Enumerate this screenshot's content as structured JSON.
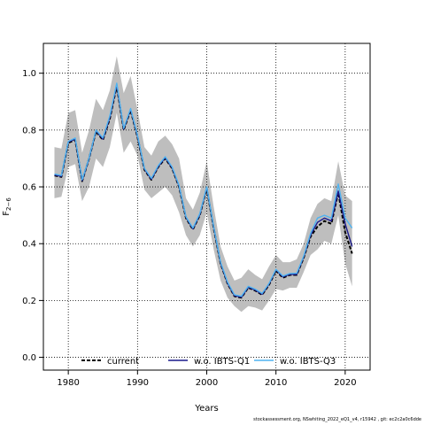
{
  "chart_data": {
    "type": "line",
    "xlabel": "Years",
    "ylabel": "F",
    "ylabel_subscript": "2−6",
    "xlim": [
      1976.4,
      2023.6
    ],
    "ylim": [
      -0.045,
      1.105
    ],
    "xticks": [
      1980,
      1990,
      2000,
      2010,
      2020
    ],
    "yticks": [
      0.0,
      0.2,
      0.4,
      0.6,
      0.8,
      1.0
    ],
    "xtick_labels": [
      "1980",
      "1990",
      "2000",
      "2010",
      "2020"
    ],
    "ytick_labels": [
      "0.0",
      "0.2",
      "0.4",
      "0.6",
      "0.8",
      "1.0"
    ],
    "grid": "dotted",
    "legend_placement": "bottom",
    "x": [
      1978,
      1979,
      1980,
      1981,
      1982,
      1983,
      1984,
      1985,
      1986,
      1987,
      1988,
      1989,
      1990,
      1991,
      1992,
      1993,
      1994,
      1995,
      1996,
      1997,
      1998,
      1999,
      2000,
      2001,
      2002,
      2003,
      2004,
      2005,
      2006,
      2007,
      2008,
      2009,
      2010,
      2011,
      2012,
      2013,
      2014,
      2015,
      2016,
      2017,
      2018,
      2019,
      2020,
      2021
    ],
    "confidence_band": {
      "color": "#bebebe",
      "lower": [
        0.56,
        0.565,
        0.67,
        0.68,
        0.55,
        0.6,
        0.7,
        0.67,
        0.74,
        0.86,
        0.72,
        0.76,
        0.71,
        0.59,
        0.56,
        0.58,
        0.6,
        0.57,
        0.51,
        0.43,
        0.39,
        0.43,
        0.51,
        0.38,
        0.27,
        0.21,
        0.18,
        0.16,
        0.18,
        0.175,
        0.165,
        0.2,
        0.24,
        0.235,
        0.245,
        0.245,
        0.3,
        0.36,
        0.38,
        0.41,
        0.4,
        0.5,
        0.33,
        0.25
      ],
      "upper": [
        0.74,
        0.735,
        0.86,
        0.87,
        0.72,
        0.8,
        0.91,
        0.87,
        0.94,
        1.06,
        0.93,
        0.99,
        0.87,
        0.74,
        0.71,
        0.76,
        0.78,
        0.75,
        0.7,
        0.56,
        0.52,
        0.58,
        0.69,
        0.53,
        0.39,
        0.32,
        0.27,
        0.28,
        0.31,
        0.29,
        0.275,
        0.32,
        0.36,
        0.335,
        0.335,
        0.345,
        0.4,
        0.49,
        0.54,
        0.56,
        0.55,
        0.69,
        0.57,
        0.55
      ]
    },
    "series": [
      {
        "name": "current",
        "color": "#000000",
        "dash": "4,2",
        "values": [
          0.64,
          0.635,
          0.755,
          0.765,
          0.62,
          0.7,
          0.795,
          0.765,
          0.84,
          0.955,
          0.8,
          0.87,
          0.775,
          0.66,
          0.625,
          0.67,
          0.7,
          0.665,
          0.6,
          0.49,
          0.45,
          0.5,
          0.595,
          0.455,
          0.33,
          0.26,
          0.215,
          0.21,
          0.245,
          0.235,
          0.22,
          0.255,
          0.305,
          0.28,
          0.29,
          0.29,
          0.35,
          0.425,
          0.46,
          0.48,
          0.47,
          0.58,
          0.44,
          0.365
        ]
      },
      {
        "name": "w.o. IBTS-Q1",
        "color": "#1a1a8c",
        "dash": "",
        "values": [
          0.642,
          0.637,
          0.758,
          0.768,
          0.622,
          0.7,
          0.798,
          0.768,
          0.845,
          0.96,
          0.803,
          0.873,
          0.778,
          0.663,
          0.627,
          0.672,
          0.703,
          0.667,
          0.603,
          0.493,
          0.452,
          0.503,
          0.598,
          0.458,
          0.332,
          0.262,
          0.217,
          0.212,
          0.247,
          0.237,
          0.222,
          0.258,
          0.308,
          0.283,
          0.292,
          0.292,
          0.353,
          0.43,
          0.475,
          0.49,
          0.48,
          0.585,
          0.47,
          0.39
        ]
      },
      {
        "name": "w.o. IBTS-Q3",
        "color": "#4fb3f0",
        "dash": "",
        "values": [
          0.645,
          0.64,
          0.76,
          0.772,
          0.625,
          0.702,
          0.8,
          0.772,
          0.85,
          0.965,
          0.806,
          0.876,
          0.781,
          0.665,
          0.63,
          0.675,
          0.706,
          0.67,
          0.605,
          0.495,
          0.455,
          0.506,
          0.6,
          0.46,
          0.335,
          0.265,
          0.22,
          0.215,
          0.25,
          0.24,
          0.225,
          0.26,
          0.31,
          0.286,
          0.295,
          0.296,
          0.356,
          0.436,
          0.49,
          0.5,
          0.49,
          0.61,
          0.49,
          0.455
        ]
      }
    ]
  },
  "footer_text": "stockassessment.org, NSwhiting_2022_eQ1_v4, r15942 , git: ec2c2a0c6dde"
}
